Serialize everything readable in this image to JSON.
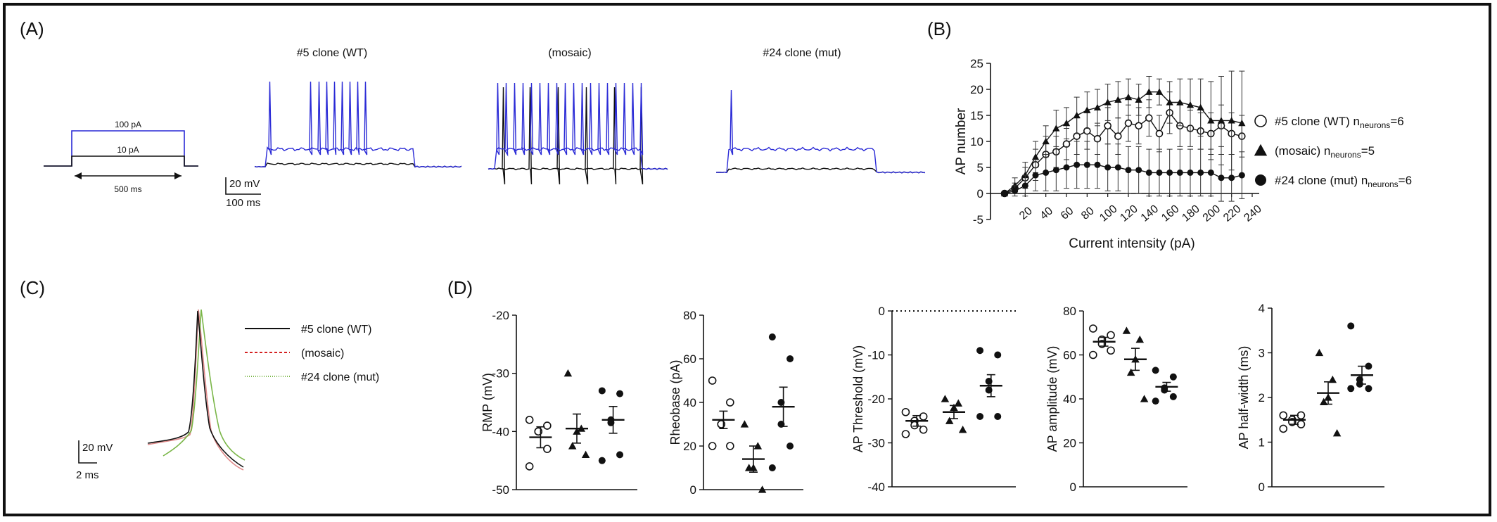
{
  "panels": {
    "A": {
      "label": "(A)",
      "stim": {
        "high": "100 pA",
        "low": "10 pA",
        "duration": "500 ms"
      },
      "scale": {
        "v": "20 mV",
        "t": "100 ms"
      },
      "titles": [
        {
          "main": "#5 clone ",
          "paren": "(WT)"
        },
        {
          "main": "",
          "paren": "(mosaic)"
        },
        {
          "main": "#24 clone ",
          "paren": "(mut)"
        }
      ],
      "trace_colors": {
        "high": "#2a2ad6",
        "low": "#111111"
      }
    },
    "B": {
      "label": "(B)"
    },
    "C": {
      "label": "(C)",
      "legend": [
        {
          "label": "#5 clone (WT)",
          "color": "#111111",
          "dash": ""
        },
        {
          "label": "(mosaic)",
          "color": "#d42020",
          "dash": "4,3"
        },
        {
          "label": "#24 clone (mut)",
          "color": "#7ab648",
          "dash": "1,2"
        }
      ],
      "scale": {
        "v": "20 mV",
        "t": "2 ms"
      }
    },
    "D": {
      "label": "(D)"
    }
  },
  "chart_data": [
    {
      "type": "line",
      "panel": "B",
      "xlabel": "Current intensity (pA)",
      "ylabel": "AP number",
      "xlim": [
        0,
        240
      ],
      "ylim": [
        -5,
        25
      ],
      "xticks": [
        20,
        40,
        60,
        80,
        100,
        120,
        140,
        160,
        180,
        200,
        220,
        240
      ],
      "yticks": [
        -5,
        0,
        5,
        10,
        15,
        20,
        25
      ],
      "x": [
        0,
        10,
        20,
        30,
        40,
        50,
        60,
        70,
        80,
        90,
        100,
        110,
        120,
        130,
        140,
        150,
        160,
        170,
        180,
        190,
        200,
        210,
        220,
        230
      ],
      "series": [
        {
          "name": "#5 clone (WT) n",
          "sub": "neurons",
          "suffix": "=6",
          "marker": "open-circle",
          "values": [
            0,
            1,
            3,
            5.5,
            7.5,
            8,
            9.5,
            11,
            12,
            10.5,
            13,
            11,
            13.5,
            13,
            14.5,
            11.5,
            15.5,
            13,
            12.5,
            12,
            11.5,
            13,
            11.5,
            11
          ],
          "error": [
            0,
            1,
            2,
            3,
            3.5,
            3,
            3,
            3.5,
            3.5,
            3,
            3.5,
            3.5,
            3.5,
            3.5,
            3.5,
            3.5,
            4,
            4,
            3.5,
            3.5,
            4,
            4,
            4,
            4
          ]
        },
        {
          "name": "(mosaic) n",
          "sub": "neurons",
          "suffix": "=5",
          "marker": "filled-triangle",
          "values": [
            0,
            1.5,
            3.5,
            7,
            10,
            12.5,
            13.5,
            15,
            16,
            16.5,
            17.5,
            18,
            18.5,
            18,
            19.5,
            19.5,
            17.5,
            17.5,
            17,
            16.5,
            14,
            14,
            14,
            13.5
          ],
          "error": [
            0,
            1.5,
            2.5,
            3,
            3,
            3.5,
            3,
            3.5,
            3.5,
            3.5,
            3.5,
            3.5,
            3.5,
            3,
            3,
            2.5,
            4,
            4.5,
            5,
            5.5,
            7.5,
            8.5,
            9.5,
            10
          ]
        },
        {
          "name": "#24 clone (mut) n",
          "sub": "neurons",
          "suffix": "=6",
          "marker": "filled-circle",
          "values": [
            0,
            0.5,
            1.5,
            3.5,
            4,
            4.5,
            5,
            5.5,
            5.5,
            5.5,
            5,
            5,
            4.5,
            4.5,
            4,
            4,
            4,
            4,
            4,
            4,
            4,
            3,
            3,
            3.5
          ],
          "error": [
            0,
            1,
            2,
            3,
            3.5,
            4,
            4,
            4.5,
            4.5,
            4.5,
            4.5,
            4.5,
            4.5,
            4.5,
            4.5,
            4.5,
            4.5,
            4.5,
            4.5,
            4.5,
            4.5,
            4.5,
            4.5,
            4.5
          ]
        }
      ]
    },
    {
      "type": "scatter",
      "panel": "D1",
      "ylabel": "RMP (mV)",
      "ylim": [
        -50,
        -20
      ],
      "yticks": [
        -50,
        -40,
        -30,
        -20
      ],
      "groups": [
        {
          "marker": "open-circle",
          "mean": -41,
          "sem": 1.8,
          "points": [
            -38,
            -39,
            -40,
            -40,
            -43,
            -46
          ]
        },
        {
          "marker": "filled-triangle",
          "mean": -39.5,
          "sem": 2.5,
          "points": [
            -30,
            -39.5,
            -40,
            -42.5,
            -44
          ]
        },
        {
          "marker": "filled-circle",
          "mean": -38,
          "sem": 2.3,
          "points": [
            -33,
            -33.5,
            -38,
            -38.5,
            -44,
            -45
          ]
        }
      ]
    },
    {
      "type": "scatter",
      "panel": "D2",
      "ylabel": "Rheobase (pA)",
      "ylim": [
        0,
        80
      ],
      "yticks": [
        0,
        20,
        40,
        60,
        80
      ],
      "groups": [
        {
          "marker": "open-circle",
          "mean": 32,
          "sem": 4,
          "points": [
            50,
            40,
            30,
            30,
            20,
            20
          ]
        },
        {
          "marker": "filled-triangle",
          "mean": 14,
          "sem": 6,
          "points": [
            30,
            20,
            10,
            10,
            0
          ]
        },
        {
          "marker": "filled-circle",
          "mean": 38,
          "sem": 9,
          "points": [
            70,
            60,
            40,
            30,
            20,
            10
          ]
        }
      ]
    },
    {
      "type": "scatter",
      "panel": "D3",
      "ylabel": "AP Threshold (mV)",
      "ylim": [
        -40,
        0
      ],
      "yticks": [
        -40,
        -30,
        -20,
        -10,
        0
      ],
      "ref_line": 0,
      "groups": [
        {
          "marker": "open-circle",
          "mean": -25,
          "sem": 1.2,
          "points": [
            -23,
            -24,
            -25,
            -26,
            -27,
            -28
          ]
        },
        {
          "marker": "filled-triangle",
          "mean": -23,
          "sem": 1.5,
          "points": [
            -20,
            -21,
            -22,
            -25,
            -27
          ]
        },
        {
          "marker": "filled-circle",
          "mean": -17,
          "sem": 2.5,
          "points": [
            -9,
            -10,
            -16,
            -18,
            -24,
            -24
          ]
        }
      ]
    },
    {
      "type": "scatter",
      "panel": "D4",
      "ylabel": "AP amplitude (mV)",
      "ylim": [
        0,
        80
      ],
      "yticks": [
        0,
        20,
        40,
        60,
        80
      ],
      "groups": [
        {
          "marker": "open-circle",
          "mean": 66,
          "sem": 2,
          "points": [
            72,
            69,
            67,
            65,
            62,
            60
          ]
        },
        {
          "marker": "filled-triangle",
          "mean": 58,
          "sem": 5,
          "points": [
            71,
            67,
            58,
            52,
            40
          ]
        },
        {
          "marker": "filled-circle",
          "mean": 45.5,
          "sem": 2,
          "points": [
            53,
            50,
            45,
            44,
            41,
            39
          ]
        }
      ]
    },
    {
      "type": "scatter",
      "panel": "D5",
      "ylabel": "AP half-width (ms)",
      "ylim": [
        0,
        4
      ],
      "yticks": [
        0,
        1,
        2,
        3,
        4
      ],
      "groups": [
        {
          "marker": "open-circle",
          "mean": 1.5,
          "sem": 0.1,
          "points": [
            1.6,
            1.6,
            1.5,
            1.45,
            1.4,
            1.3
          ]
        },
        {
          "marker": "filled-triangle",
          "mean": 2.1,
          "sem": 0.25,
          "points": [
            3.0,
            2.4,
            2.0,
            1.9,
            1.2
          ]
        },
        {
          "marker": "filled-circle",
          "mean": 2.5,
          "sem": 0.2,
          "points": [
            3.6,
            2.7,
            2.4,
            2.3,
            2.2,
            2.2
          ]
        }
      ]
    }
  ]
}
